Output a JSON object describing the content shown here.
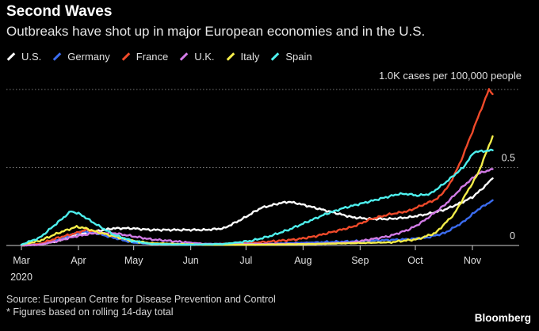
{
  "header": {
    "title": "Second Waves",
    "subtitle": "Outbreaks have shot up in major European economies and in the U.S."
  },
  "footer": {
    "source": "Source: European Centre for Disease Prevention and Control",
    "note": "* Figures based on rolling 14-day total",
    "brand": "Bloomberg"
  },
  "chart_data": {
    "type": "line",
    "title": "Second Waves",
    "subtitle": "Outbreaks have shot up in major European economies and in the U.S.",
    "ylabel": "1.0K cases per 100,000 people",
    "ylim": [
      0,
      1.0
    ],
    "y_ticks": [
      {
        "value": 0,
        "label": "0"
      },
      {
        "value": 0.5,
        "label": "0.5"
      },
      {
        "value": 1.0,
        "label": "1.0K cases per 100,000 people"
      }
    ],
    "x_months": [
      "Mar",
      "Apr",
      "May",
      "Jun",
      "Jul",
      "Aug",
      "Sep",
      "Oct",
      "Nov"
    ],
    "x_year_label": "2020",
    "xlim_days": [
      -5,
      260
    ],
    "x_unit": "days since Mar 1, 2020",
    "series": [
      {
        "name": "U.S.",
        "color": "#ffffff",
        "points": [
          [
            0,
            0
          ],
          [
            10,
            0.005
          ],
          [
            20,
            0.03
          ],
          [
            30,
            0.07
          ],
          [
            40,
            0.09
          ],
          [
            50,
            0.11
          ],
          [
            60,
            0.11
          ],
          [
            70,
            0.1
          ],
          [
            80,
            0.1
          ],
          [
            90,
            0.1
          ],
          [
            100,
            0.1
          ],
          [
            110,
            0.11
          ],
          [
            120,
            0.17
          ],
          [
            130,
            0.24
          ],
          [
            140,
            0.27
          ],
          [
            145,
            0.28
          ],
          [
            150,
            0.27
          ],
          [
            160,
            0.24
          ],
          [
            170,
            0.21
          ],
          [
            180,
            0.18
          ],
          [
            190,
            0.17
          ],
          [
            200,
            0.17
          ],
          [
            210,
            0.18
          ],
          [
            220,
            0.2
          ],
          [
            230,
            0.23
          ],
          [
            240,
            0.28
          ],
          [
            245,
            0.31
          ],
          [
            250,
            0.36
          ],
          [
            256,
            0.43
          ]
        ]
      },
      {
        "name": "Germany",
        "color": "#3b6cf0",
        "points": [
          [
            0,
            0
          ],
          [
            10,
            0.01
          ],
          [
            20,
            0.04
          ],
          [
            30,
            0.08
          ],
          [
            35,
            0.09
          ],
          [
            40,
            0.08
          ],
          [
            50,
            0.05
          ],
          [
            60,
            0.02
          ],
          [
            70,
            0.01
          ],
          [
            100,
            0.01
          ],
          [
            130,
            0.01
          ],
          [
            160,
            0.02
          ],
          [
            190,
            0.03
          ],
          [
            210,
            0.04
          ],
          [
            220,
            0.05
          ],
          [
            230,
            0.08
          ],
          [
            240,
            0.15
          ],
          [
            248,
            0.23
          ],
          [
            256,
            0.29
          ]
        ]
      },
      {
        "name": "France",
        "color": "#f04a2a",
        "points": [
          [
            0,
            0
          ],
          [
            10,
            0.01
          ],
          [
            20,
            0.05
          ],
          [
            30,
            0.08
          ],
          [
            35,
            0.1
          ],
          [
            40,
            0.09
          ],
          [
            50,
            0.06
          ],
          [
            60,
            0.03
          ],
          [
            70,
            0.01
          ],
          [
            100,
            0.005
          ],
          [
            130,
            0.02
          ],
          [
            150,
            0.04
          ],
          [
            160,
            0.06
          ],
          [
            170,
            0.09
          ],
          [
            180,
            0.12
          ],
          [
            190,
            0.17
          ],
          [
            200,
            0.2
          ],
          [
            210,
            0.22
          ],
          [
            220,
            0.27
          ],
          [
            226,
            0.3
          ],
          [
            232,
            0.38
          ],
          [
            238,
            0.52
          ],
          [
            244,
            0.7
          ],
          [
            250,
            0.88
          ],
          [
            254,
            1.0
          ],
          [
            256,
            0.97
          ]
        ]
      },
      {
        "name": "U.K.",
        "color": "#d27be6",
        "points": [
          [
            0,
            0
          ],
          [
            10,
            0.005
          ],
          [
            20,
            0.03
          ],
          [
            30,
            0.06
          ],
          [
            40,
            0.08
          ],
          [
            50,
            0.08
          ],
          [
            60,
            0.06
          ],
          [
            70,
            0.04
          ],
          [
            80,
            0.03
          ],
          [
            100,
            0.01
          ],
          [
            130,
            0.01
          ],
          [
            160,
            0.01
          ],
          [
            180,
            0.02
          ],
          [
            190,
            0.04
          ],
          [
            200,
            0.06
          ],
          [
            210,
            0.1
          ],
          [
            215,
            0.13
          ],
          [
            220,
            0.17
          ],
          [
            230,
            0.26
          ],
          [
            240,
            0.38
          ],
          [
            248,
            0.46
          ],
          [
            256,
            0.49
          ]
        ]
      },
      {
        "name": "Italy",
        "color": "#f5ee4a",
        "points": [
          [
            0,
            0.005
          ],
          [
            10,
            0.03
          ],
          [
            20,
            0.08
          ],
          [
            25,
            0.1
          ],
          [
            30,
            0.12
          ],
          [
            35,
            0.11
          ],
          [
            40,
            0.09
          ],
          [
            50,
            0.06
          ],
          [
            60,
            0.03
          ],
          [
            70,
            0.015
          ],
          [
            100,
            0.005
          ],
          [
            130,
            0.005
          ],
          [
            160,
            0.01
          ],
          [
            180,
            0.015
          ],
          [
            200,
            0.02
          ],
          [
            215,
            0.04
          ],
          [
            225,
            0.08
          ],
          [
            235,
            0.2
          ],
          [
            242,
            0.34
          ],
          [
            248,
            0.46
          ],
          [
            252,
            0.58
          ],
          [
            256,
            0.7
          ]
        ]
      },
      {
        "name": "Spain",
        "color": "#4ef0ee",
        "points": [
          [
            0,
            0.005
          ],
          [
            10,
            0.05
          ],
          [
            20,
            0.15
          ],
          [
            27,
            0.22
          ],
          [
            32,
            0.2
          ],
          [
            40,
            0.14
          ],
          [
            50,
            0.07
          ],
          [
            60,
            0.03
          ],
          [
            70,
            0.01
          ],
          [
            90,
            0.005
          ],
          [
            110,
            0.01
          ],
          [
            125,
            0.03
          ],
          [
            135,
            0.06
          ],
          [
            145,
            0.1
          ],
          [
            155,
            0.15
          ],
          [
            165,
            0.2
          ],
          [
            175,
            0.24
          ],
          [
            185,
            0.27
          ],
          [
            195,
            0.3
          ],
          [
            205,
            0.33
          ],
          [
            210,
            0.33
          ],
          [
            215,
            0.32
          ],
          [
            222,
            0.33
          ],
          [
            230,
            0.4
          ],
          [
            240,
            0.5
          ],
          [
            246,
            0.6
          ],
          [
            256,
            0.61
          ]
        ]
      }
    ]
  }
}
